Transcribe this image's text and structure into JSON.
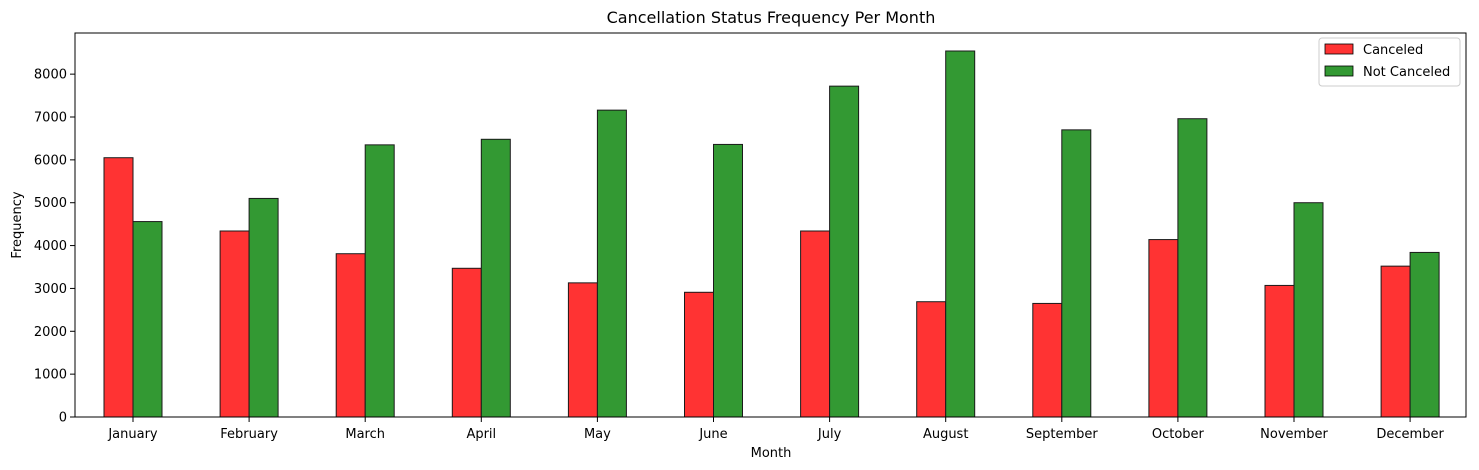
{
  "chart_data": {
    "type": "bar",
    "title": "Cancellation Status Frequency Per Month",
    "xlabel": "Month",
    "ylabel": "Frequency",
    "ylim": [
      0,
      8960
    ],
    "yticks": [
      0,
      1000,
      2000,
      3000,
      4000,
      5000,
      6000,
      7000,
      8000
    ],
    "ytick_labels": [
      "0",
      "1000",
      "2000",
      "3000",
      "4000",
      "5000",
      "6000",
      "7000",
      "8000"
    ],
    "categories": [
      "January",
      "February",
      "March",
      "April",
      "May",
      "June",
      "July",
      "August",
      "September",
      "October",
      "November",
      "December"
    ],
    "series": [
      {
        "name": "Canceled",
        "color": "#ff3333",
        "values": [
          6050,
          4340,
          3810,
          3470,
          3130,
          2910,
          4340,
          2690,
          2650,
          4140,
          3070,
          3520
        ]
      },
      {
        "name": "Not Canceled",
        "color": "#339933",
        "values": [
          4560,
          5100,
          6350,
          6480,
          7160,
          6360,
          7720,
          8540,
          6700,
          6960,
          5000,
          3840
        ]
      }
    ],
    "grid": false,
    "legend_position": "top-right"
  }
}
